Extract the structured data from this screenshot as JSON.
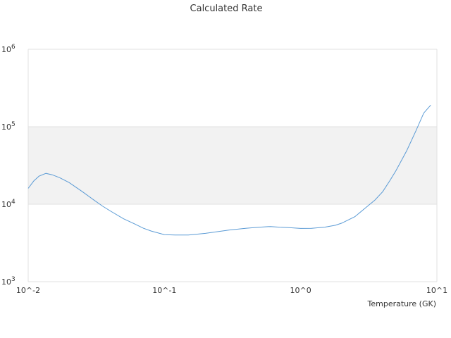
{
  "chart_data": {
    "type": "line",
    "title": "Calculated Rate",
    "xlabel": "Temperature (GK)",
    "ylabel": "",
    "x_scale": "log",
    "y_scale": "log",
    "xlim": [
      0.01,
      10
    ],
    "ylim": [
      1000,
      1000000
    ],
    "x_tick_labels": [
      "10^-2",
      "10^-1",
      "10^0",
      "10^1"
    ],
    "y_tick_labels": [
      "10^3",
      "10^4",
      "10^5",
      "10^6"
    ],
    "grid": true,
    "band": {
      "from": 10000,
      "to": 100000,
      "color": "#f2f2f2"
    },
    "series": [
      {
        "color": "#5b9bd5",
        "x": [
          0.01,
          0.011,
          0.012,
          0.0135,
          0.015,
          0.017,
          0.02,
          0.025,
          0.03,
          0.035,
          0.04,
          0.05,
          0.06,
          0.07,
          0.08,
          0.1,
          0.12,
          0.15,
          0.2,
          0.25,
          0.3,
          0.4,
          0.5,
          0.6,
          0.7,
          0.8,
          1.0,
          1.2,
          1.5,
          1.8,
          2.0,
          2.5,
          3.0,
          3.5,
          4.0,
          4.5,
          5.0,
          6.0,
          7.0,
          8.0,
          9.0
        ],
        "y": [
          16000,
          20000,
          23000,
          25000,
          24000,
          22000,
          19000,
          14500,
          11500,
          9500,
          8200,
          6500,
          5600,
          4900,
          4500,
          4050,
          4000,
          4000,
          4200,
          4450,
          4650,
          4900,
          5050,
          5150,
          5050,
          5000,
          4870,
          4880,
          5050,
          5350,
          5700,
          6900,
          9000,
          11300,
          14500,
          20000,
          27000,
          49000,
          88000,
          150000,
          190000
        ]
      }
    ]
  }
}
